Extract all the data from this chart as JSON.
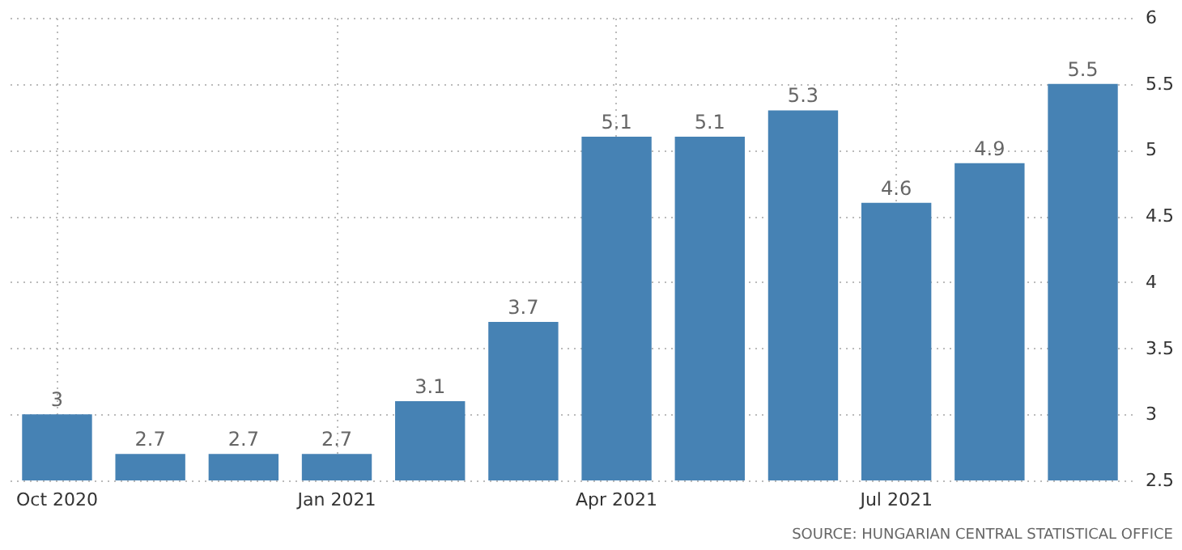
{
  "chart_data": {
    "type": "bar",
    "categories": [
      "Oct 2020",
      null,
      null,
      "Jan 2021",
      null,
      null,
      "Apr 2021",
      null,
      null,
      "Jul 2021",
      null,
      null
    ],
    "values": [
      3,
      2.7,
      2.7,
      2.7,
      3.1,
      3.7,
      5.1,
      5.1,
      5.3,
      4.6,
      4.9,
      5.5
    ],
    "color": "#4682b4",
    "ylim": [
      2.5,
      6
    ],
    "yticks": [
      2.5,
      3,
      3.5,
      4,
      4.5,
      5,
      5.5,
      6
    ],
    "grid": true,
    "data_labels": true,
    "annotations": [
      "SOURCE: HUNGARIAN CENTRAL STATISTICAL OFFICE"
    ]
  }
}
